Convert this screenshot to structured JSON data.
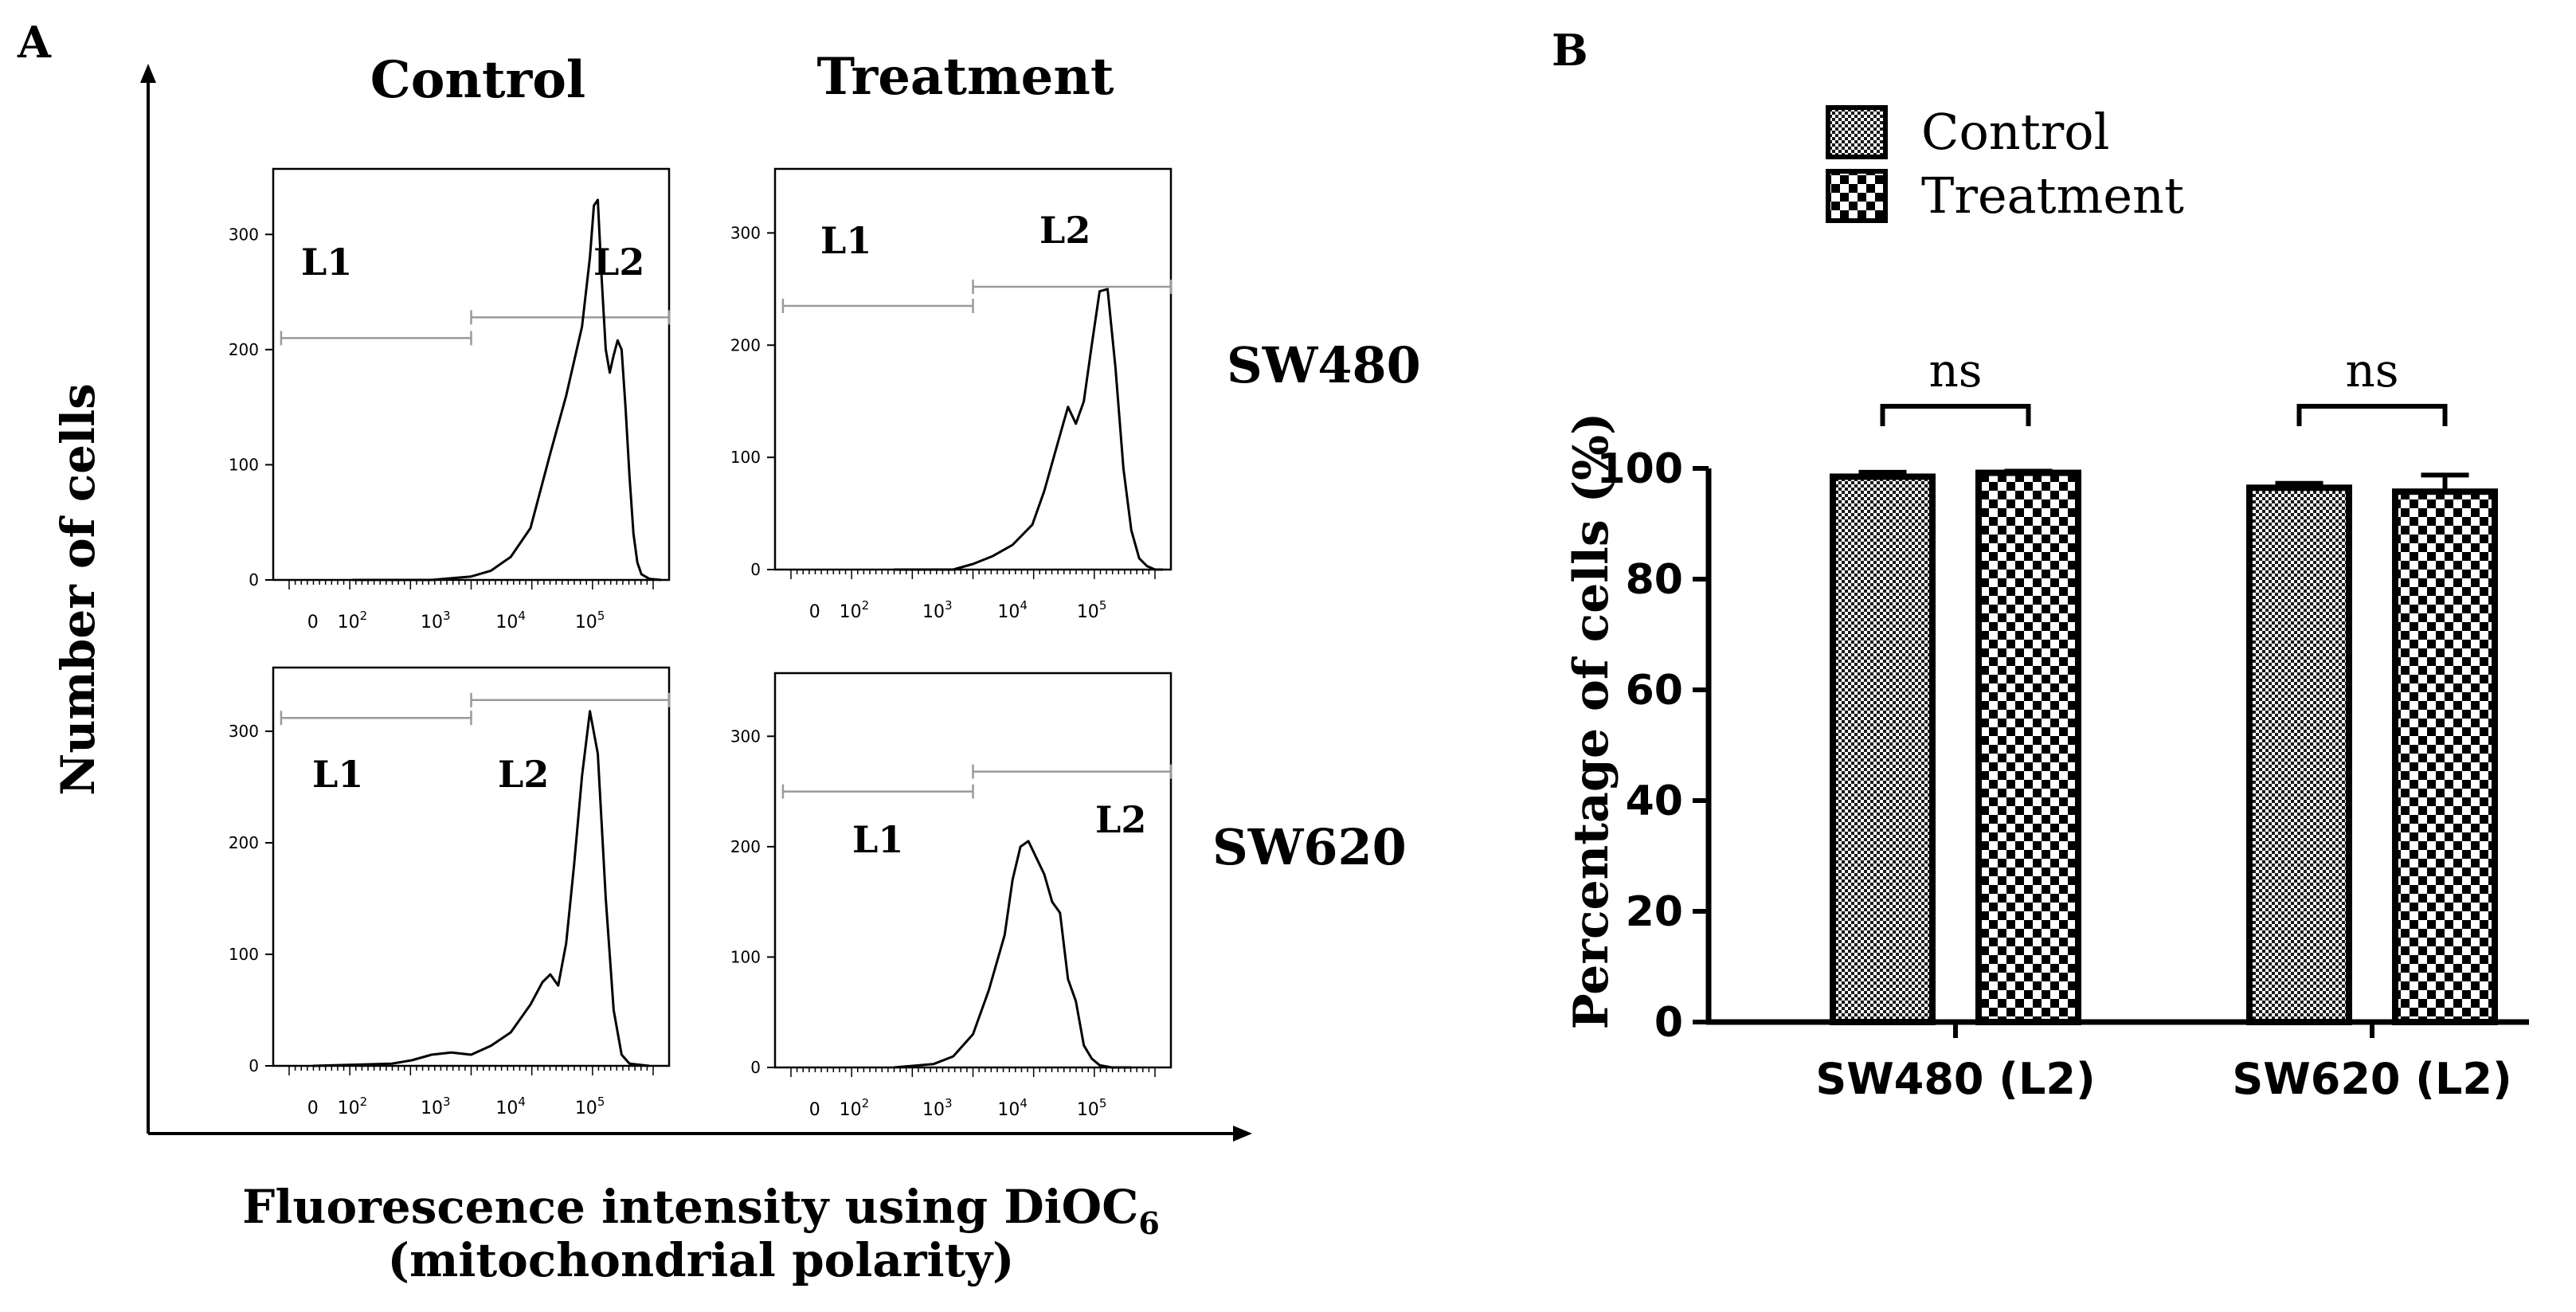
{
  "figure": {
    "panel_a_label": "A",
    "panel_b_label": "B"
  },
  "panel_a": {
    "col_headers": [
      "Control",
      "Treatment"
    ],
    "row_labels": [
      "SW480",
      "SW620"
    ],
    "y_axis_title": "Number of cells",
    "x_axis_title_line1": "Fluorescence intensity using DiOC",
    "x_axis_title_sub": "6",
    "x_axis_title_line2": "(mitochondrial polarity)"
  },
  "chart_data": [
    {
      "type": "line",
      "title": "Control — SW480",
      "ylim": [
        0,
        350
      ],
      "yticks": [
        0,
        100,
        200,
        300
      ],
      "xticks": [
        "0",
        "10^2",
        "10^3",
        "10^4",
        "10^5"
      ],
      "gate_labels": [
        "L1",
        "L2"
      ],
      "gates": [
        {
          "name": "L1",
          "y": 210
        },
        {
          "name": "L2",
          "y": 228
        }
      ],
      "x": [
        0.2,
        0.4,
        0.5,
        0.55,
        0.6,
        0.65,
        0.7,
        0.74,
        0.78,
        0.8,
        0.81,
        0.82,
        0.83,
        0.84,
        0.85,
        0.86,
        0.87,
        0.88,
        0.89,
        0.9,
        0.91,
        0.92,
        0.93,
        0.95,
        0.98
      ],
      "y": [
        0,
        0,
        3,
        8,
        20,
        45,
        110,
        160,
        220,
        280,
        325,
        330,
        260,
        200,
        180,
        195,
        208,
        200,
        150,
        90,
        40,
        15,
        5,
        1,
        0
      ]
    },
    {
      "type": "line",
      "title": "Treatment — SW480",
      "ylim": [
        0,
        350
      ],
      "yticks": [
        0,
        100,
        200,
        300
      ],
      "xticks": [
        "0",
        "10^2",
        "10^3",
        "10^4",
        "10^5"
      ],
      "gate_labels": [
        "L1",
        "L2"
      ],
      "gates": [
        {
          "name": "L1",
          "y": 235
        },
        {
          "name": "L2",
          "y": 252
        }
      ],
      "x": [
        0.3,
        0.45,
        0.5,
        0.55,
        0.6,
        0.65,
        0.68,
        0.72,
        0.74,
        0.76,
        0.78,
        0.8,
        0.82,
        0.84,
        0.86,
        0.88,
        0.9,
        0.92,
        0.94,
        0.96,
        0.98
      ],
      "y": [
        0,
        0,
        5,
        12,
        22,
        40,
        70,
        120,
        145,
        130,
        150,
        200,
        248,
        250,
        180,
        90,
        35,
        10,
        3,
        0,
        0
      ]
    },
    {
      "type": "line",
      "title": "Control — SW620",
      "ylim": [
        0,
        350
      ],
      "yticks": [
        0,
        100,
        200,
        300
      ],
      "xticks": [
        "0",
        "10^2",
        "10^3",
        "10^4",
        "10^5"
      ],
      "gate_labels": [
        "L1",
        "L2"
      ],
      "gates": [
        {
          "name": "L1",
          "y": 312
        },
        {
          "name": "L2",
          "y": 328
        }
      ],
      "x": [
        0.1,
        0.3,
        0.35,
        0.4,
        0.45,
        0.5,
        0.55,
        0.6,
        0.65,
        0.68,
        0.7,
        0.72,
        0.74,
        0.76,
        0.78,
        0.8,
        0.82,
        0.84,
        0.86,
        0.88,
        0.9,
        0.95
      ],
      "y": [
        0,
        2,
        5,
        10,
        12,
        10,
        18,
        30,
        55,
        75,
        82,
        72,
        110,
        180,
        260,
        318,
        280,
        150,
        50,
        10,
        2,
        0
      ]
    },
    {
      "type": "line",
      "title": "Treatment — SW620",
      "ylim": [
        0,
        350
      ],
      "yticks": [
        0,
        100,
        200,
        300
      ],
      "xticks": [
        "0",
        "10^2",
        "10^3",
        "10^4",
        "10^5"
      ],
      "gate_labels": [
        "L1",
        "L2"
      ],
      "gates": [
        {
          "name": "L1",
          "y": 250
        },
        {
          "name": "L2",
          "y": 268
        }
      ],
      "x": [
        0.3,
        0.4,
        0.45,
        0.5,
        0.54,
        0.58,
        0.6,
        0.62,
        0.64,
        0.66,
        0.68,
        0.7,
        0.72,
        0.74,
        0.76,
        0.78,
        0.8,
        0.82,
        0.85,
        0.9
      ],
      "y": [
        0,
        3,
        10,
        30,
        70,
        120,
        170,
        200,
        205,
        190,
        175,
        150,
        140,
        80,
        60,
        20,
        8,
        2,
        0,
        0
      ]
    },
    {
      "type": "bar",
      "categories": [
        "SW480 (L2)",
        "SW620 (L2)"
      ],
      "series": [
        {
          "name": "Control",
          "values": [
            98.5,
            96.5
          ],
          "errors": [
            0.8,
            0.8
          ]
        },
        {
          "name": "Treatment",
          "values": [
            99.2,
            95.8
          ],
          "errors": [
            0.3,
            3.0
          ]
        }
      ],
      "ylabel": "Percentage of cells (%)",
      "ylim": [
        0,
        100
      ],
      "yticks": [
        0,
        20,
        40,
        60,
        80,
        100
      ],
      "legend": "top",
      "annotations": [
        "ns",
        "ns"
      ]
    }
  ]
}
